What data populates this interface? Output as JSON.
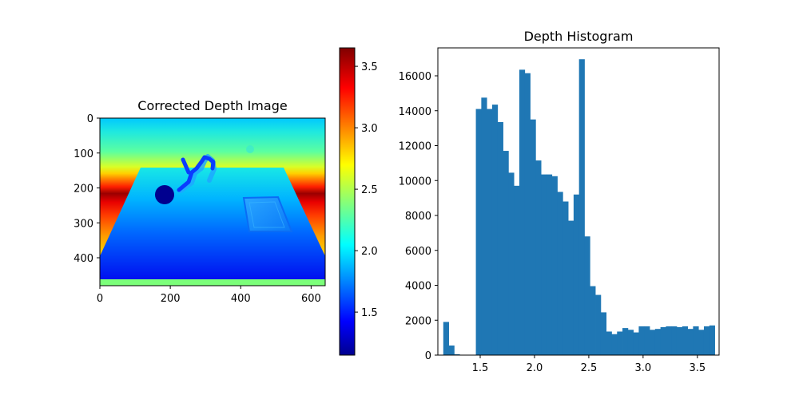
{
  "chart_data": [
    {
      "type": "heatmap",
      "title": "Corrected Depth Image",
      "xlabel": "",
      "ylabel": "",
      "x_ticks": [
        0,
        200,
        400,
        600
      ],
      "y_ticks": [
        0,
        100,
        200,
        300,
        400
      ],
      "xlim": [
        0,
        640
      ],
      "ylim": [
        480,
        0
      ],
      "colormap": "jet",
      "colorbar": {
        "range": [
          1.15,
          3.65
        ],
        "ticks": [
          1.5,
          2.0,
          2.5,
          3.0,
          3.5
        ],
        "tick_labels": [
          "1.5",
          "2.0",
          "2.5",
          "3.0",
          "3.5"
        ]
      }
    },
    {
      "type": "bar",
      "title": "Depth Histogram",
      "xlabel": "",
      "ylabel": "",
      "xlim": [
        1.11,
        3.7
      ],
      "ylim": [
        0,
        17600
      ],
      "x_ticks": [
        1.5,
        2.0,
        2.5,
        3.0,
        3.5
      ],
      "x_tick_labels": [
        "1.5",
        "2.0",
        "2.5",
        "3.0",
        "3.5"
      ],
      "y_ticks": [
        0,
        2000,
        4000,
        6000,
        8000,
        10000,
        12000,
        14000,
        16000
      ],
      "bar_color": "#1f77b4",
      "bin_edges": [
        1.16,
        1.21,
        1.26,
        1.31,
        1.36,
        1.41,
        1.46,
        1.51,
        1.56,
        1.61,
        1.66,
        1.71,
        1.76,
        1.81,
        1.86,
        1.91,
        1.96,
        2.01,
        2.06,
        2.11,
        2.16,
        2.21,
        2.26,
        2.31,
        2.36,
        2.41,
        2.46,
        2.51,
        2.56,
        2.61,
        2.66,
        2.71,
        2.76,
        2.81,
        2.86,
        2.91,
        2.96,
        3.01,
        3.06,
        3.11,
        3.16,
        3.21,
        3.26,
        3.31,
        3.36,
        3.41,
        3.46,
        3.51,
        3.56,
        3.61,
        3.66
      ],
      "values": [
        1900,
        550,
        50,
        0,
        0,
        0,
        14100,
        14750,
        14100,
        14350,
        13350,
        11700,
        10450,
        9700,
        16350,
        16150,
        13500,
        11150,
        10350,
        10350,
        10250,
        9350,
        8800,
        7700,
        9200,
        16950,
        6800,
        3950,
        3450,
        2450,
        1350,
        1200,
        1350,
        1550,
        1450,
        1300,
        1650,
        1650,
        1450,
        1500,
        1600,
        1650,
        1650,
        1600,
        1650,
        1500,
        1650,
        1450,
        1650,
        1700
      ]
    }
  ]
}
